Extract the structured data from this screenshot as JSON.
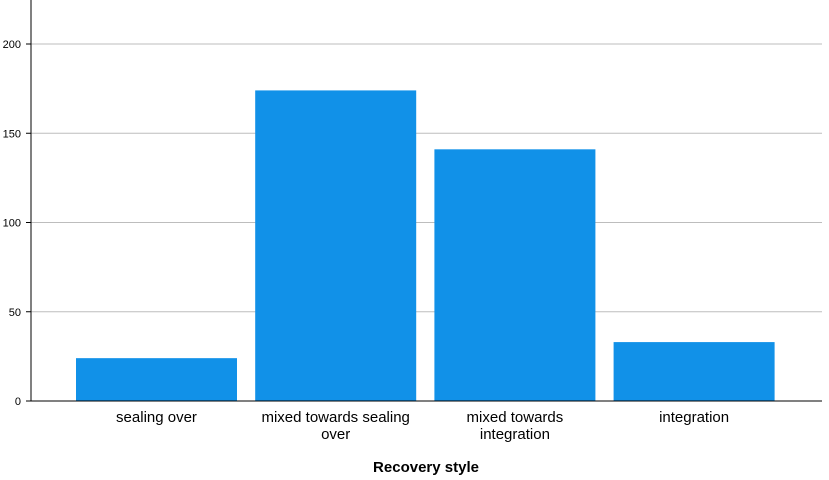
{
  "chart_data": {
    "type": "bar",
    "categories": [
      [
        "sealing over"
      ],
      [
        "mixed towards sealing",
        "over"
      ],
      [
        "mixed towards",
        "integration"
      ],
      [
        "integration"
      ]
    ],
    "values": [
      24,
      174,
      141,
      33
    ],
    "title": "",
    "xlabel": "Recovery style",
    "ylabel": "",
    "ylim": [
      0,
      220
    ],
    "yticks": [
      0,
      50,
      100,
      150,
      200
    ],
    "grid": true,
    "bar_color": "#1191E8",
    "grid_color": "#BDBDBD",
    "axis_color": "#000000"
  }
}
